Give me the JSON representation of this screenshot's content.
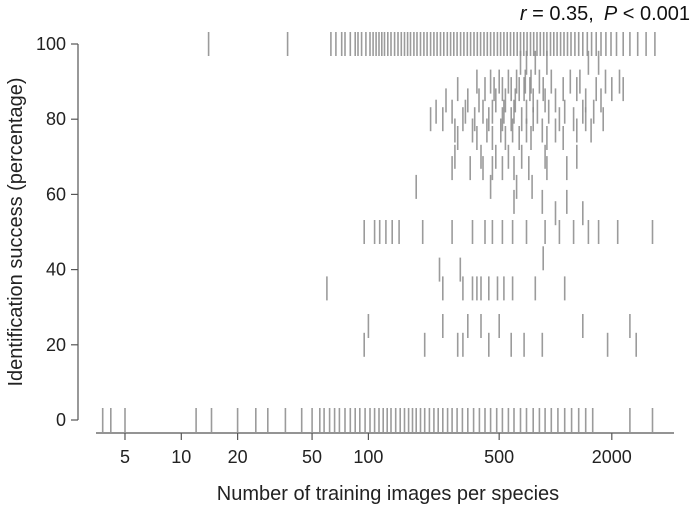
{
  "chart_data": {
    "type": "scatter",
    "title": "",
    "annotation": {
      "r_symbol": "r",
      "r_text": " = 0.35,",
      "p_symbol": "P",
      "p_text": " < 0.001"
    },
    "xlabel": "Number of training images per species",
    "ylabel": "Identification success (percentage)",
    "xscale": "log",
    "xlim": [
      3.5,
      4300
    ],
    "ylim": [
      -3,
      103
    ],
    "x_ticks": [
      5,
      10,
      20,
      50,
      100,
      500,
      2000
    ],
    "x_tick_labels": [
      "5",
      "10",
      "20",
      "50",
      "100",
      "500",
      "2000"
    ],
    "y_ticks": [
      0,
      20,
      40,
      60,
      80,
      100
    ],
    "y_tick_labels": [
      "0",
      "20",
      "40",
      "60",
      "80",
      "100"
    ],
    "marker": "vertical dash (rug)",
    "color": "#8a8a8a",
    "grid": false,
    "legend": "none",
    "series": [
      {
        "y": 100,
        "x": [
          14,
          37,
          63,
          67,
          72,
          75,
          80,
          85,
          88,
          92,
          97,
          102,
          106,
          110,
          114,
          118,
          122,
          127,
          132,
          138,
          144,
          150,
          156,
          162,
          168,
          175,
          182,
          190,
          198,
          206,
          215,
          224,
          233,
          243,
          253,
          264,
          275,
          286,
          298,
          311,
          324,
          338,
          352,
          367,
          382,
          398,
          415,
          432,
          450,
          469,
          489,
          509,
          530,
          552,
          575,
          599,
          624,
          650,
          677,
          705,
          735,
          765,
          797,
          830,
          865,
          900,
          940,
          980,
          1020,
          1065,
          1110,
          1160,
          1210,
          1270,
          1330,
          1400,
          1480,
          1560,
          1650,
          1750,
          1860,
          1980,
          2120,
          2300,
          2500,
          2750,
          3050,
          3400
        ]
      },
      {
        "y": 95,
        "x": [
          650,
          700,
          780,
          900,
          1500,
          1700
        ]
      },
      {
        "y": 90,
        "x": [
          380,
          450,
          500,
          560,
          620,
          690,
          740,
          820,
          950,
          1200,
          1350,
          1850,
          2200
        ]
      },
      {
        "y": 88,
        "x": [
          300,
          420,
          470,
          520,
          580,
          640,
          680,
          730,
          860,
          1100,
          1300,
          1650,
          2000,
          2300
        ]
      },
      {
        "y": 85,
        "x": [
          260,
          340,
          390,
          480,
          540,
          610,
          760,
          880,
          1000,
          1450,
          1750
        ]
      },
      {
        "y": 82,
        "x": [
          230,
          280,
          330,
          410,
          460,
          530,
          600,
          700,
          800,
          920,
          1120,
          1400,
          1600
        ]
      },
      {
        "y": 80,
        "x": [
          215,
          250,
          320,
          370,
          440,
          520,
          580,
          660,
          760,
          1050,
          1250,
          1450,
          1800
        ]
      },
      {
        "y": 77,
        "x": [
          290,
          360,
          430,
          510,
          590,
          700,
          850,
          1000,
          1300,
          1550
        ]
      },
      {
        "y": 75,
        "x": [
          300,
          380,
          460,
          540,
          640,
          740,
          900,
          1100
        ]
      },
      {
        "y": 70,
        "x": [
          290,
          400,
          480,
          560,
          660,
          880,
          1300
        ]
      },
      {
        "y": 67,
        "x": [
          280,
          350,
          410,
          460,
          520,
          600,
          720,
          900,
          1150
        ]
      },
      {
        "y": 62,
        "x": [
          180,
          450,
          620,
          750
        ]
      },
      {
        "y": 58,
        "x": [
          600,
          850,
          1150
        ]
      },
      {
        "y": 55,
        "x": [
          1000,
          1400
        ]
      },
      {
        "y": 50,
        "x": [
          95,
          108,
          115,
          124,
          134,
          146,
          195,
          280,
          360,
          420,
          460,
          520,
          590,
          700,
          880,
          1050,
          1250,
          1500,
          1700,
          2150,
          3300
        ]
      },
      {
        "y": 43,
        "x": [
          860
        ]
      },
      {
        "y": 40,
        "x": [
          240,
          310
        ]
      },
      {
        "y": 35,
        "x": [
          60,
          250,
          320,
          360,
          380,
          400,
          440,
          490,
          530,
          590,
          780,
          1120
        ]
      },
      {
        "y": 25,
        "x": [
          100,
          250,
          340,
          400,
          500,
          1400,
          2500
        ]
      },
      {
        "y": 20,
        "x": [
          95,
          200,
          300,
          320,
          440,
          580,
          680,
          850,
          1900,
          2700
        ]
      },
      {
        "y": 0,
        "x": [
          3.8,
          4.2,
          5.0,
          12,
          14.5,
          20,
          25,
          29,
          36,
          44,
          50,
          55,
          58,
          62,
          66,
          70,
          75,
          80,
          85,
          90,
          96,
          102,
          108,
          114,
          120,
          126,
          132,
          140,
          148,
          156,
          164,
          172,
          180,
          190,
          200,
          212,
          224,
          236,
          250,
          265,
          280,
          298,
          318,
          340,
          365,
          392,
          420,
          450,
          485,
          520,
          560,
          600,
          650,
          700,
          760,
          820,
          880,
          950,
          1030,
          1120,
          1220,
          1330,
          1450,
          1580,
          2500,
          3300
        ]
      }
    ]
  }
}
